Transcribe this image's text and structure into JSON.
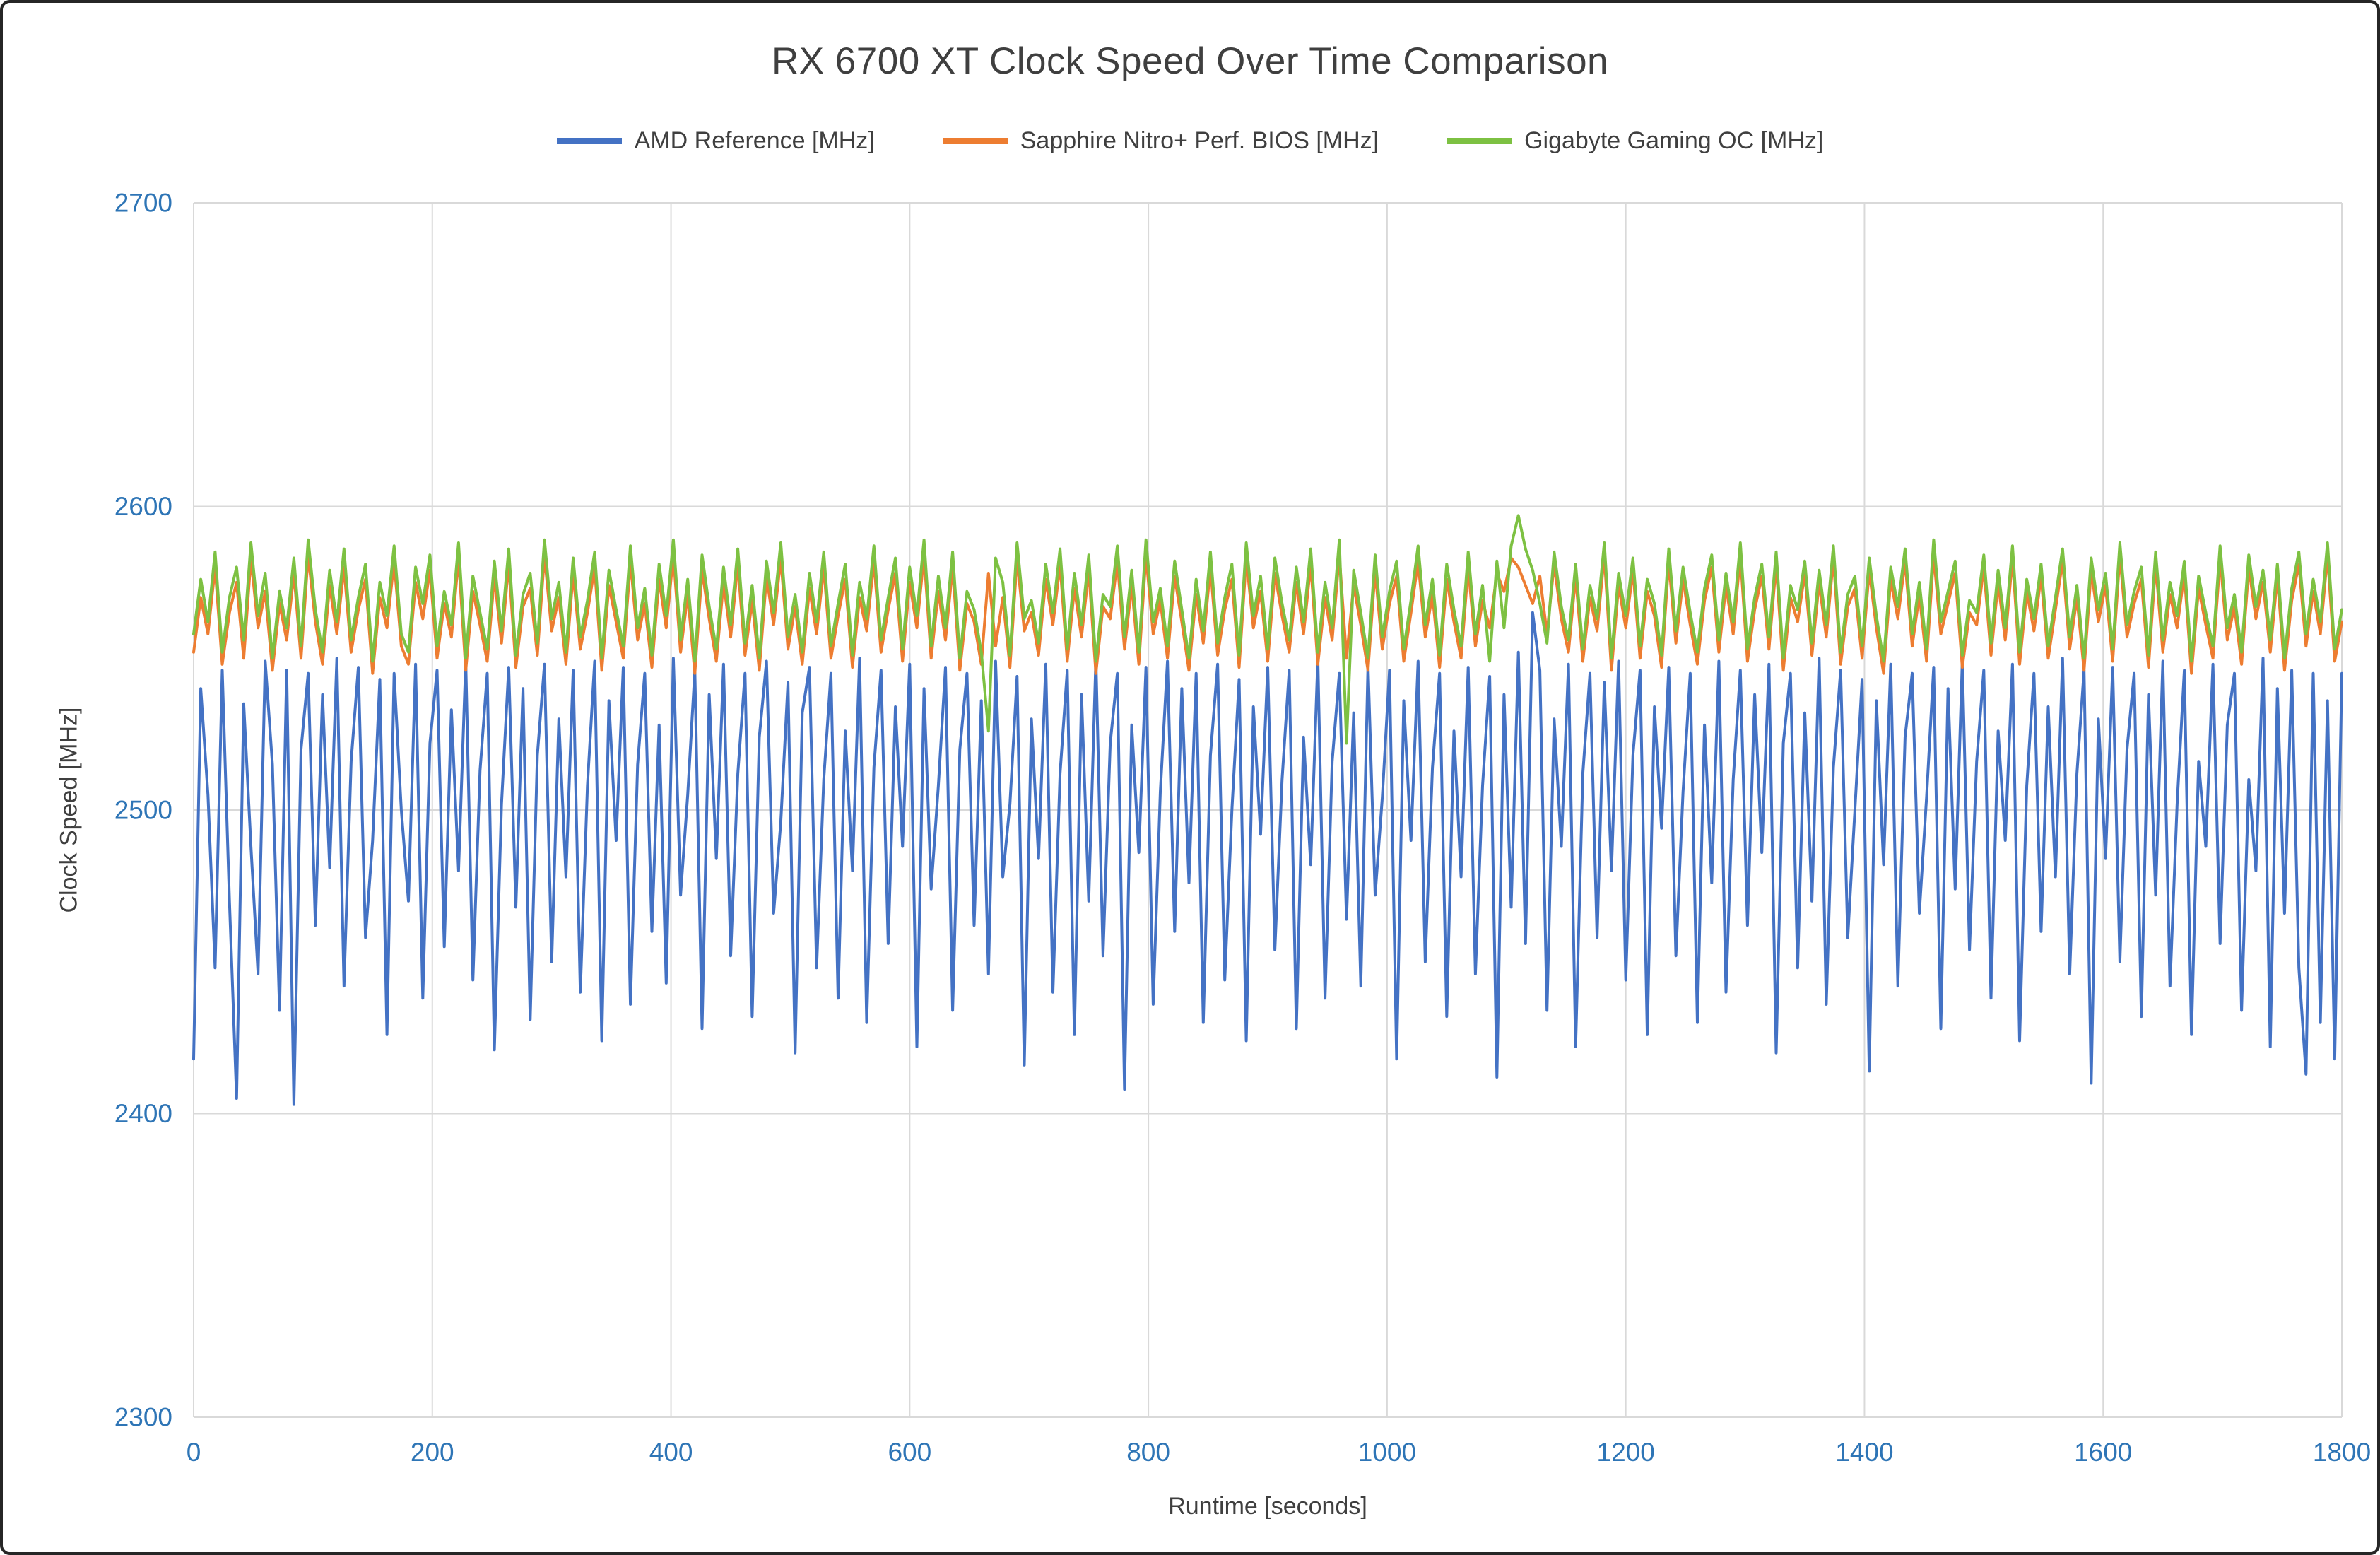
{
  "styles": {
    "border_color": "#262626",
    "title_color": "#3f3f3f",
    "axis_title_color": "#3f3f3f",
    "tick_color": "#2E75B6",
    "grid_color": "#D9D9D9",
    "background": "#ffffff"
  },
  "chart_data": {
    "type": "line",
    "title": "RX 6700 XT Clock Speed Over Time Comparison",
    "xlabel": "Runtime [seconds]",
    "ylabel": "Clock Speed [MHz]",
    "xlim": [
      0,
      1800
    ],
    "ylim": [
      2300,
      2700
    ],
    "x_ticks": [
      0,
      200,
      400,
      600,
      800,
      1000,
      1200,
      1400,
      1600,
      1800
    ],
    "y_ticks": [
      2300,
      2400,
      2500,
      2600,
      2700
    ],
    "grid": true,
    "legend_position": "top",
    "x_start": 0,
    "x_step": 6,
    "series": [
      {
        "name": "AMD Reference [MHz]",
        "color": "#4472C4",
        "values": [
          2418,
          2540,
          2505,
          2448,
          2546,
          2470,
          2405,
          2535,
          2488,
          2446,
          2549,
          2515,
          2434,
          2546,
          2403,
          2520,
          2545,
          2462,
          2538,
          2481,
          2550,
          2442,
          2516,
          2547,
          2458,
          2490,
          2543,
          2426,
          2545,
          2500,
          2470,
          2548,
          2438,
          2522,
          2546,
          2455,
          2533,
          2480,
          2549,
          2444,
          2513,
          2545,
          2421,
          2502,
          2547,
          2468,
          2540,
          2431,
          2518,
          2548,
          2450,
          2530,
          2478,
          2546,
          2440,
          2508,
          2549,
          2424,
          2536,
          2490,
          2547,
          2436,
          2515,
          2545,
          2460,
          2528,
          2443,
          2550,
          2472,
          2505,
          2546,
          2428,
          2538,
          2484,
          2548,
          2452,
          2512,
          2545,
          2432,
          2524,
          2549,
          2466,
          2496,
          2542,
          2420,
          2532,
          2547,
          2448,
          2510,
          2545,
          2438,
          2526,
          2480,
          2550,
          2430,
          2514,
          2546,
          2456,
          2534,
          2488,
          2548,
          2422,
          2540,
          2474,
          2508,
          2547,
          2434,
          2520,
          2545,
          2462,
          2536,
          2446,
          2549,
          2478,
          2502,
          2544,
          2416,
          2530,
          2484,
          2548,
          2440,
          2512,
          2546,
          2426,
          2538,
          2470,
          2550,
          2452,
          2522,
          2545,
          2408,
          2528,
          2486,
          2547,
          2436,
          2506,
          2549,
          2460,
          2540,
          2476,
          2545,
          2430,
          2518,
          2548,
          2444,
          2500,
          2543,
          2424,
          2534,
          2492,
          2547,
          2454,
          2510,
          2546,
          2428,
          2524,
          2482,
          2550,
          2438,
          2516,
          2545,
          2464,
          2532,
          2442,
          2548,
          2472,
          2504,
          2546,
          2418,
          2536,
          2490,
          2549,
          2450,
          2514,
          2545,
          2432,
          2526,
          2478,
          2547,
          2446,
          2508,
          2544,
          2412,
          2538,
          2468,
          2552,
          2456,
          2565,
          2546,
          2434,
          2530,
          2488,
          2548,
          2422,
          2512,
          2545,
          2458,
          2542,
          2480,
          2549,
          2444,
          2518,
          2546,
          2426,
          2534,
          2494,
          2547,
          2452,
          2506,
          2545,
          2430,
          2528,
          2476,
          2549,
          2440,
          2510,
          2546,
          2462,
          2538,
          2486,
          2548,
          2420,
          2522,
          2545,
          2448,
          2532,
          2470,
          2550,
          2436,
          2514,
          2546,
          2458,
          2500,
          2543,
          2414,
          2536,
          2482,
          2548,
          2442,
          2524,
          2545,
          2466,
          2504,
          2547,
          2428,
          2540,
          2474,
          2549,
          2454,
          2516,
          2546,
          2438,
          2526,
          2490,
          2548,
          2424,
          2508,
          2545,
          2460,
          2534,
          2478,
          2550,
          2446,
          2512,
          2546,
          2410,
          2530,
          2484,
          2547,
          2450,
          2520,
          2545,
          2432,
          2538,
          2472,
          2549,
          2442,
          2502,
          2546,
          2426,
          2516,
          2488,
          2548,
          2456,
          2528,
          2545,
          2434,
          2510,
          2480,
          2550,
          2422,
          2540,
          2466,
          2546,
          2448,
          2413,
          2545,
          2430,
          2536,
          2418,
          2545
        ]
      },
      {
        "name": "Sapphire Nitro+ Perf. BIOS [MHz]",
        "color": "#ED7D31",
        "values": [
          2552,
          2570,
          2558,
          2580,
          2548,
          2565,
          2575,
          2550,
          2583,
          2560,
          2572,
          2546,
          2568,
          2556,
          2578,
          2550,
          2584,
          2562,
          2548,
          2574,
          2558,
          2580,
          2552,
          2566,
          2576,
          2545,
          2570,
          2560,
          2582,
          2554,
          2548,
          2575,
          2563,
          2579,
          2550,
          2568,
          2557,
          2583,
          2546,
          2572,
          2561,
          2549,
          2577,
          2555,
          2581,
          2547,
          2567,
          2573,
          2551,
          2584,
          2559,
          2570,
          2548,
          2578,
          2553,
          2565,
          2580,
          2546,
          2574,
          2562,
          2550,
          2582,
          2556,
          2568,
          2547,
          2576,
          2560,
          2584,
          2552,
          2571,
          2545,
          2579,
          2563,
          2549,
          2575,
          2557,
          2581,
          2551,
          2569,
          2546,
          2577,
          2561,
          2583,
          2553,
          2567,
          2548,
          2573,
          2558,
          2580,
          2550,
          2564,
          2576,
          2547,
          2570,
          2559,
          2582,
          2552,
          2566,
          2578,
          2549,
          2575,
          2560,
          2584,
          2550,
          2572,
          2556,
          2580,
          2546,
          2568,
          2562,
          2548,
          2578,
          2554,
          2570,
          2547,
          2583,
          2559,
          2565,
          2551,
          2576,
          2561,
          2581,
          2549,
          2573,
          2557,
          2579,
          2545,
          2567,
          2563,
          2582,
          2553,
          2574,
          2548,
          2584,
          2558,
          2569,
          2550,
          2577,
          2562,
          2546,
          2571,
          2555,
          2580,
          2551,
          2566,
          2576,
          2547,
          2583,
          2560,
          2572,
          2549,
          2578,
          2564,
          2552,
          2575,
          2558,
          2581,
          2548,
          2570,
          2556,
          2584,
          2550,
          2574,
          2561,
          2546,
          2579,
          2553,
          2568,
          2577,
          2549,
          2565,
          2582,
          2557,
          2571,
          2547,
          2576,
          2562,
          2550,
          2580,
          2554,
          2569,
          2560,
          2578,
          2572,
          2583,
          2580,
          2574,
          2568,
          2577,
          2558,
          2581,
          2563,
          2552,
          2577,
          2549,
          2570,
          2559,
          2584,
          2546,
          2574,
          2560,
          2579,
          2550,
          2572,
          2564,
          2547,
          2582,
          2555,
          2576,
          2561,
          2548,
          2569,
          2580,
          2552,
          2574,
          2558,
          2584,
          2549,
          2566,
          2577,
          2553,
          2581,
          2546,
          2570,
          2562,
          2578,
          2551,
          2575,
          2557,
          2583,
          2548,
          2567,
          2573,
          2550,
          2579,
          2560,
          2545,
          2576,
          2563,
          2582,
          2554,
          2571,
          2549,
          2584,
          2558,
          2568,
          2578,
          2547,
          2565,
          2561,
          2580,
          2551,
          2575,
          2556,
          2583,
          2548,
          2572,
          2559,
          2577,
          2550,
          2566,
          2582,
          2553,
          2570,
          2546,
          2579,
          2562,
          2574,
          2549,
          2584,
          2557,
          2568,
          2576,
          2547,
          2581,
          2552,
          2571,
          2560,
          2578,
          2545,
          2573,
          2561,
          2550,
          2583,
          2556,
          2567,
          2548,
          2580,
          2563,
          2575,
          2552,
          2577,
          2546,
          2569,
          2581,
          2554,
          2572,
          2558,
          2584,
          2549,
          2562
        ]
      },
      {
        "name": "Gigabyte Gaming OC [MHz]",
        "color": "#7DC142",
        "values": [
          2558,
          2576,
          2562,
          2585,
          2552,
          2570,
          2580,
          2556,
          2588,
          2564,
          2578,
          2550,
          2572,
          2560,
          2583,
          2554,
          2589,
          2566,
          2552,
          2579,
          2562,
          2586,
          2556,
          2570,
          2581,
          2549,
          2575,
          2564,
          2587,
          2558,
          2552,
          2580,
          2568,
          2584,
          2554,
          2572,
          2561,
          2588,
          2550,
          2577,
          2565,
          2553,
          2582,
          2559,
          2586,
          2551,
          2571,
          2578,
          2555,
          2589,
          2563,
          2575,
          2552,
          2583,
          2557,
          2569,
          2585,
          2550,
          2579,
          2566,
          2554,
          2587,
          2560,
          2573,
          2551,
          2581,
          2564,
          2589,
          2556,
          2576,
          2549,
          2584,
          2567,
          2553,
          2580,
          2561,
          2586,
          2555,
          2574,
          2550,
          2582,
          2565,
          2588,
          2557,
          2571,
          2552,
          2578,
          2562,
          2585,
          2554,
          2568,
          2581,
          2551,
          2575,
          2563,
          2587,
          2556,
          2570,
          2583,
          2553,
          2580,
          2564,
          2589,
          2554,
          2577,
          2560,
          2585,
          2550,
          2572,
          2566,
          2552,
          2526,
          2583,
          2575,
          2551,
          2588,
          2563,
          2569,
          2555,
          2581,
          2565,
          2586,
          2553,
          2578,
          2561,
          2584,
          2549,
          2571,
          2567,
          2587,
          2557,
          2579,
          2552,
          2589,
          2562,
          2573,
          2554,
          2582,
          2566,
          2550,
          2576,
          2559,
          2585,
          2555,
          2570,
          2581,
          2551,
          2588,
          2564,
          2577,
          2553,
          2583,
          2568,
          2556,
          2580,
          2562,
          2586,
          2552,
          2575,
          2560,
          2589,
          2522,
          2579,
          2565,
          2550,
          2584,
          2557,
          2572,
          2582,
          2553,
          2569,
          2587,
          2561,
          2576,
          2551,
          2581,
          2566,
          2554,
          2585,
          2558,
          2574,
          2549,
          2582,
          2560,
          2587,
          2597,
          2586,
          2579,
          2568,
          2555,
          2585,
          2567,
          2556,
          2581,
          2553,
          2574,
          2563,
          2588,
          2550,
          2578,
          2564,
          2583,
          2554,
          2576,
          2568,
          2551,
          2586,
          2559,
          2580,
          2565,
          2552,
          2573,
          2584,
          2556,
          2578,
          2562,
          2588,
          2553,
          2570,
          2581,
          2557,
          2585,
          2550,
          2574,
          2566,
          2582,
          2555,
          2579,
          2561,
          2587,
          2552,
          2571,
          2577,
          2554,
          2583,
          2564,
          2549,
          2580,
          2567,
          2586,
          2558,
          2575,
          2553,
          2589,
          2562,
          2572,
          2582,
          2551,
          2569,
          2565,
          2584,
          2555,
          2579,
          2560,
          2587,
          2552,
          2576,
          2563,
          2581,
          2554,
          2570,
          2586,
          2557,
          2574,
          2550,
          2583,
          2566,
          2578,
          2553,
          2588,
          2561,
          2572,
          2580,
          2551,
          2585,
          2556,
          2575,
          2564,
          2582,
          2549,
          2577,
          2565,
          2554,
          2587,
          2560,
          2571,
          2552,
          2584,
          2567,
          2579,
          2556,
          2581,
          2550,
          2573,
          2585,
          2558,
          2576,
          2562,
          2588,
          2553,
          2566
        ]
      }
    ]
  }
}
